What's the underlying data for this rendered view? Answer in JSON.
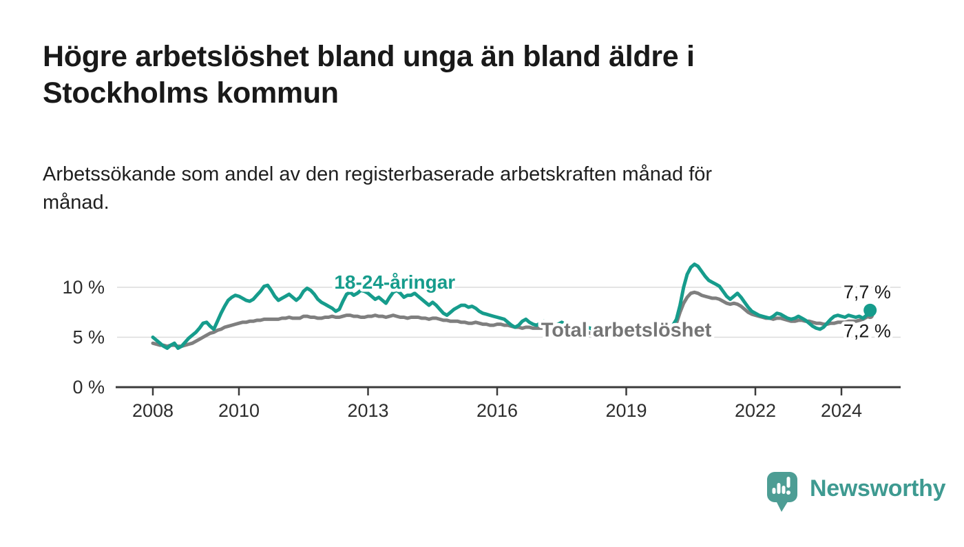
{
  "header": {
    "title": "Högre arbetslöshet bland unga än bland äldre i\nStockholms kommun",
    "subtitle": "Arbetssökande som andel av den registerbaserade arbetskraften månad för\nmånad."
  },
  "footer": {
    "brand": "Newsworthy",
    "logo_icon": "bar-chart-speech-bubble-icon",
    "brand_color": "#3e9a91"
  },
  "chart_data": {
    "type": "line",
    "title": "Högre arbetslöshet bland unga än bland äldre i Stockholms kommun",
    "xlabel": "",
    "ylabel": "Arbetssökande som andel av den registerbaserade arbetskraften",
    "x_unit": "year-month",
    "x_start_year": 2008,
    "x_interval_months": 1,
    "x_end": "2024-09",
    "x_ticks": [
      2008,
      2010,
      2013,
      2016,
      2019,
      2022,
      2024
    ],
    "y_ticks": [
      {
        "value": 0,
        "label": "0 %"
      },
      {
        "value": 5,
        "label": "5 %"
      },
      {
        "value": 10,
        "label": "10 %"
      }
    ],
    "ylim": [
      0,
      13.3
    ],
    "grid": "horizontal",
    "legend_position": "inline-labels",
    "style": {
      "grid_color": "#dcdcdc",
      "axis_color": "#3b3b3b",
      "tick_label_color": "#2d2d2d",
      "halo_color": "#ffffff"
    },
    "series": [
      {
        "key": "total",
        "name": "Total arbetslöshet",
        "color": "#7f7f7f",
        "end_value_label": "7,2 %",
        "end_dot_radius": 5.5,
        "values": [
          4.4,
          4.3,
          4.2,
          4.2,
          4.1,
          4.2,
          4.2,
          4.1,
          4.1,
          4.2,
          4.3,
          4.4,
          4.6,
          4.8,
          5.0,
          5.2,
          5.4,
          5.5,
          5.7,
          5.8,
          6.0,
          6.1,
          6.2,
          6.3,
          6.4,
          6.5,
          6.5,
          6.6,
          6.6,
          6.7,
          6.7,
          6.8,
          6.8,
          6.8,
          6.8,
          6.8,
          6.9,
          6.9,
          7.0,
          6.9,
          6.9,
          6.9,
          7.1,
          7.1,
          7.0,
          7.0,
          6.9,
          6.9,
          7.0,
          7.0,
          7.1,
          7.0,
          7.0,
          7.1,
          7.2,
          7.2,
          7.1,
          7.1,
          7.0,
          7.0,
          7.1,
          7.1,
          7.2,
          7.1,
          7.1,
          7.0,
          7.1,
          7.2,
          7.1,
          7.0,
          7.0,
          6.9,
          7.0,
          7.0,
          7.0,
          6.9,
          6.9,
          6.8,
          6.9,
          6.9,
          6.8,
          6.7,
          6.7,
          6.6,
          6.6,
          6.6,
          6.5,
          6.5,
          6.4,
          6.4,
          6.5,
          6.4,
          6.3,
          6.3,
          6.2,
          6.2,
          6.3,
          6.3,
          6.2,
          6.2,
          6.1,
          6.0,
          6.0,
          5.9,
          6.0,
          6.0,
          5.9,
          5.9,
          5.9,
          5.9,
          5.8,
          5.8,
          5.7,
          5.7,
          5.8,
          5.7,
          5.6,
          5.6,
          5.5,
          5.5,
          5.5,
          5.5,
          5.4,
          5.4,
          5.3,
          5.3,
          5.4,
          5.4,
          5.3,
          5.3,
          5.3,
          5.4,
          5.4,
          5.5,
          5.5,
          5.4,
          5.4,
          5.5,
          5.6,
          5.6,
          5.6,
          5.7,
          5.8,
          5.9,
          5.9,
          6.0,
          6.4,
          7.5,
          8.4,
          9.0,
          9.4,
          9.5,
          9.4,
          9.2,
          9.1,
          9.0,
          8.9,
          8.9,
          8.8,
          8.6,
          8.4,
          8.3,
          8.4,
          8.3,
          8.1,
          7.8,
          7.5,
          7.3,
          7.2,
          7.1,
          7.0,
          6.9,
          6.9,
          6.8,
          6.9,
          6.9,
          6.8,
          6.7,
          6.6,
          6.6,
          6.7,
          6.7,
          6.6,
          6.6,
          6.5,
          6.4,
          6.4,
          6.3,
          6.3,
          6.4,
          6.4,
          6.5,
          6.5,
          6.5,
          6.6,
          6.6,
          6.6,
          6.7,
          6.8,
          7.0,
          7.2
        ]
      },
      {
        "key": "youth",
        "name": "18-24-åringar",
        "color": "#169c8c",
        "end_value_label": "7,7 %",
        "end_dot_radius": 9.5,
        "values": [
          5.0,
          4.7,
          4.4,
          4.1,
          3.9,
          4.2,
          4.4,
          3.9,
          4.1,
          4.5,
          4.9,
          5.2,
          5.5,
          5.9,
          6.4,
          6.5,
          6.1,
          5.8,
          6.6,
          7.4,
          8.1,
          8.7,
          9.0,
          9.2,
          9.1,
          8.9,
          8.7,
          8.6,
          8.8,
          9.2,
          9.6,
          10.1,
          10.2,
          9.7,
          9.1,
          8.7,
          8.9,
          9.1,
          9.3,
          9.0,
          8.7,
          9.0,
          9.6,
          9.9,
          9.7,
          9.3,
          8.8,
          8.5,
          8.3,
          8.1,
          7.9,
          7.6,
          7.8,
          8.6,
          9.3,
          9.5,
          9.2,
          9.4,
          9.7,
          9.6,
          9.4,
          9.1,
          8.8,
          9.0,
          8.7,
          8.4,
          9.0,
          9.5,
          9.7,
          9.4,
          9.0,
          9.2,
          9.2,
          9.4,
          9.1,
          8.8,
          8.5,
          8.2,
          8.5,
          8.2,
          7.8,
          7.4,
          7.2,
          7.5,
          7.8,
          8.0,
          8.2,
          8.2,
          8.0,
          8.1,
          7.9,
          7.6,
          7.4,
          7.3,
          7.2,
          7.1,
          7.0,
          6.9,
          6.8,
          6.5,
          6.2,
          6.0,
          6.2,
          6.6,
          6.8,
          6.5,
          6.3,
          6.2,
          6.4,
          6.6,
          6.5,
          6.3,
          6.1,
          6.3,
          6.5,
          6.3,
          6.1,
          5.9,
          5.8,
          5.7,
          5.8,
          6.0,
          5.9,
          5.7,
          5.5,
          5.7,
          5.9,
          5.8,
          5.6,
          5.4,
          5.3,
          5.3,
          5.4,
          5.6,
          5.5,
          5.4,
          5.3,
          5.5,
          5.8,
          5.7,
          5.6,
          5.7,
          5.8,
          5.9,
          6.0,
          6.2,
          6.8,
          8.2,
          10.0,
          11.3,
          12.0,
          12.3,
          12.1,
          11.6,
          11.1,
          10.7,
          10.5,
          10.3,
          10.1,
          9.6,
          9.1,
          8.8,
          9.1,
          9.4,
          9.0,
          8.5,
          8.0,
          7.6,
          7.4,
          7.2,
          7.1,
          7.0,
          6.9,
          7.1,
          7.4,
          7.3,
          7.1,
          6.9,
          6.8,
          6.9,
          7.1,
          6.9,
          6.7,
          6.4,
          6.1,
          5.9,
          5.8,
          6.0,
          6.4,
          6.8,
          7.1,
          7.2,
          7.1,
          7.0,
          7.2,
          7.1,
          7.0,
          7.1,
          6.9,
          7.2,
          7.7
        ]
      }
    ],
    "annotations": [
      {
        "text": "18-24-åringar",
        "x_year": 2013.62,
        "y_pct": 9.85,
        "anchor": "middle",
        "size": 28,
        "bold": true,
        "color": "#169c8c",
        "halo": true
      },
      {
        "text": "Total arbetslöshet",
        "x_year": 2019.0,
        "y_pct": 5.08,
        "anchor": "middle",
        "size": 29,
        "bold": true,
        "color": "#757575",
        "halo": true
      },
      {
        "text": "7,7 %",
        "x_year": 2025.15,
        "y_pct": 8.9,
        "anchor": "end",
        "size": 27,
        "bold": false,
        "color": "#1a1a1a",
        "halo": true
      },
      {
        "text": "7,2 %",
        "x_year": 2025.15,
        "y_pct": 5.0,
        "anchor": "end",
        "size": 27,
        "bold": false,
        "color": "#1a1a1a",
        "halo": true
      }
    ]
  }
}
